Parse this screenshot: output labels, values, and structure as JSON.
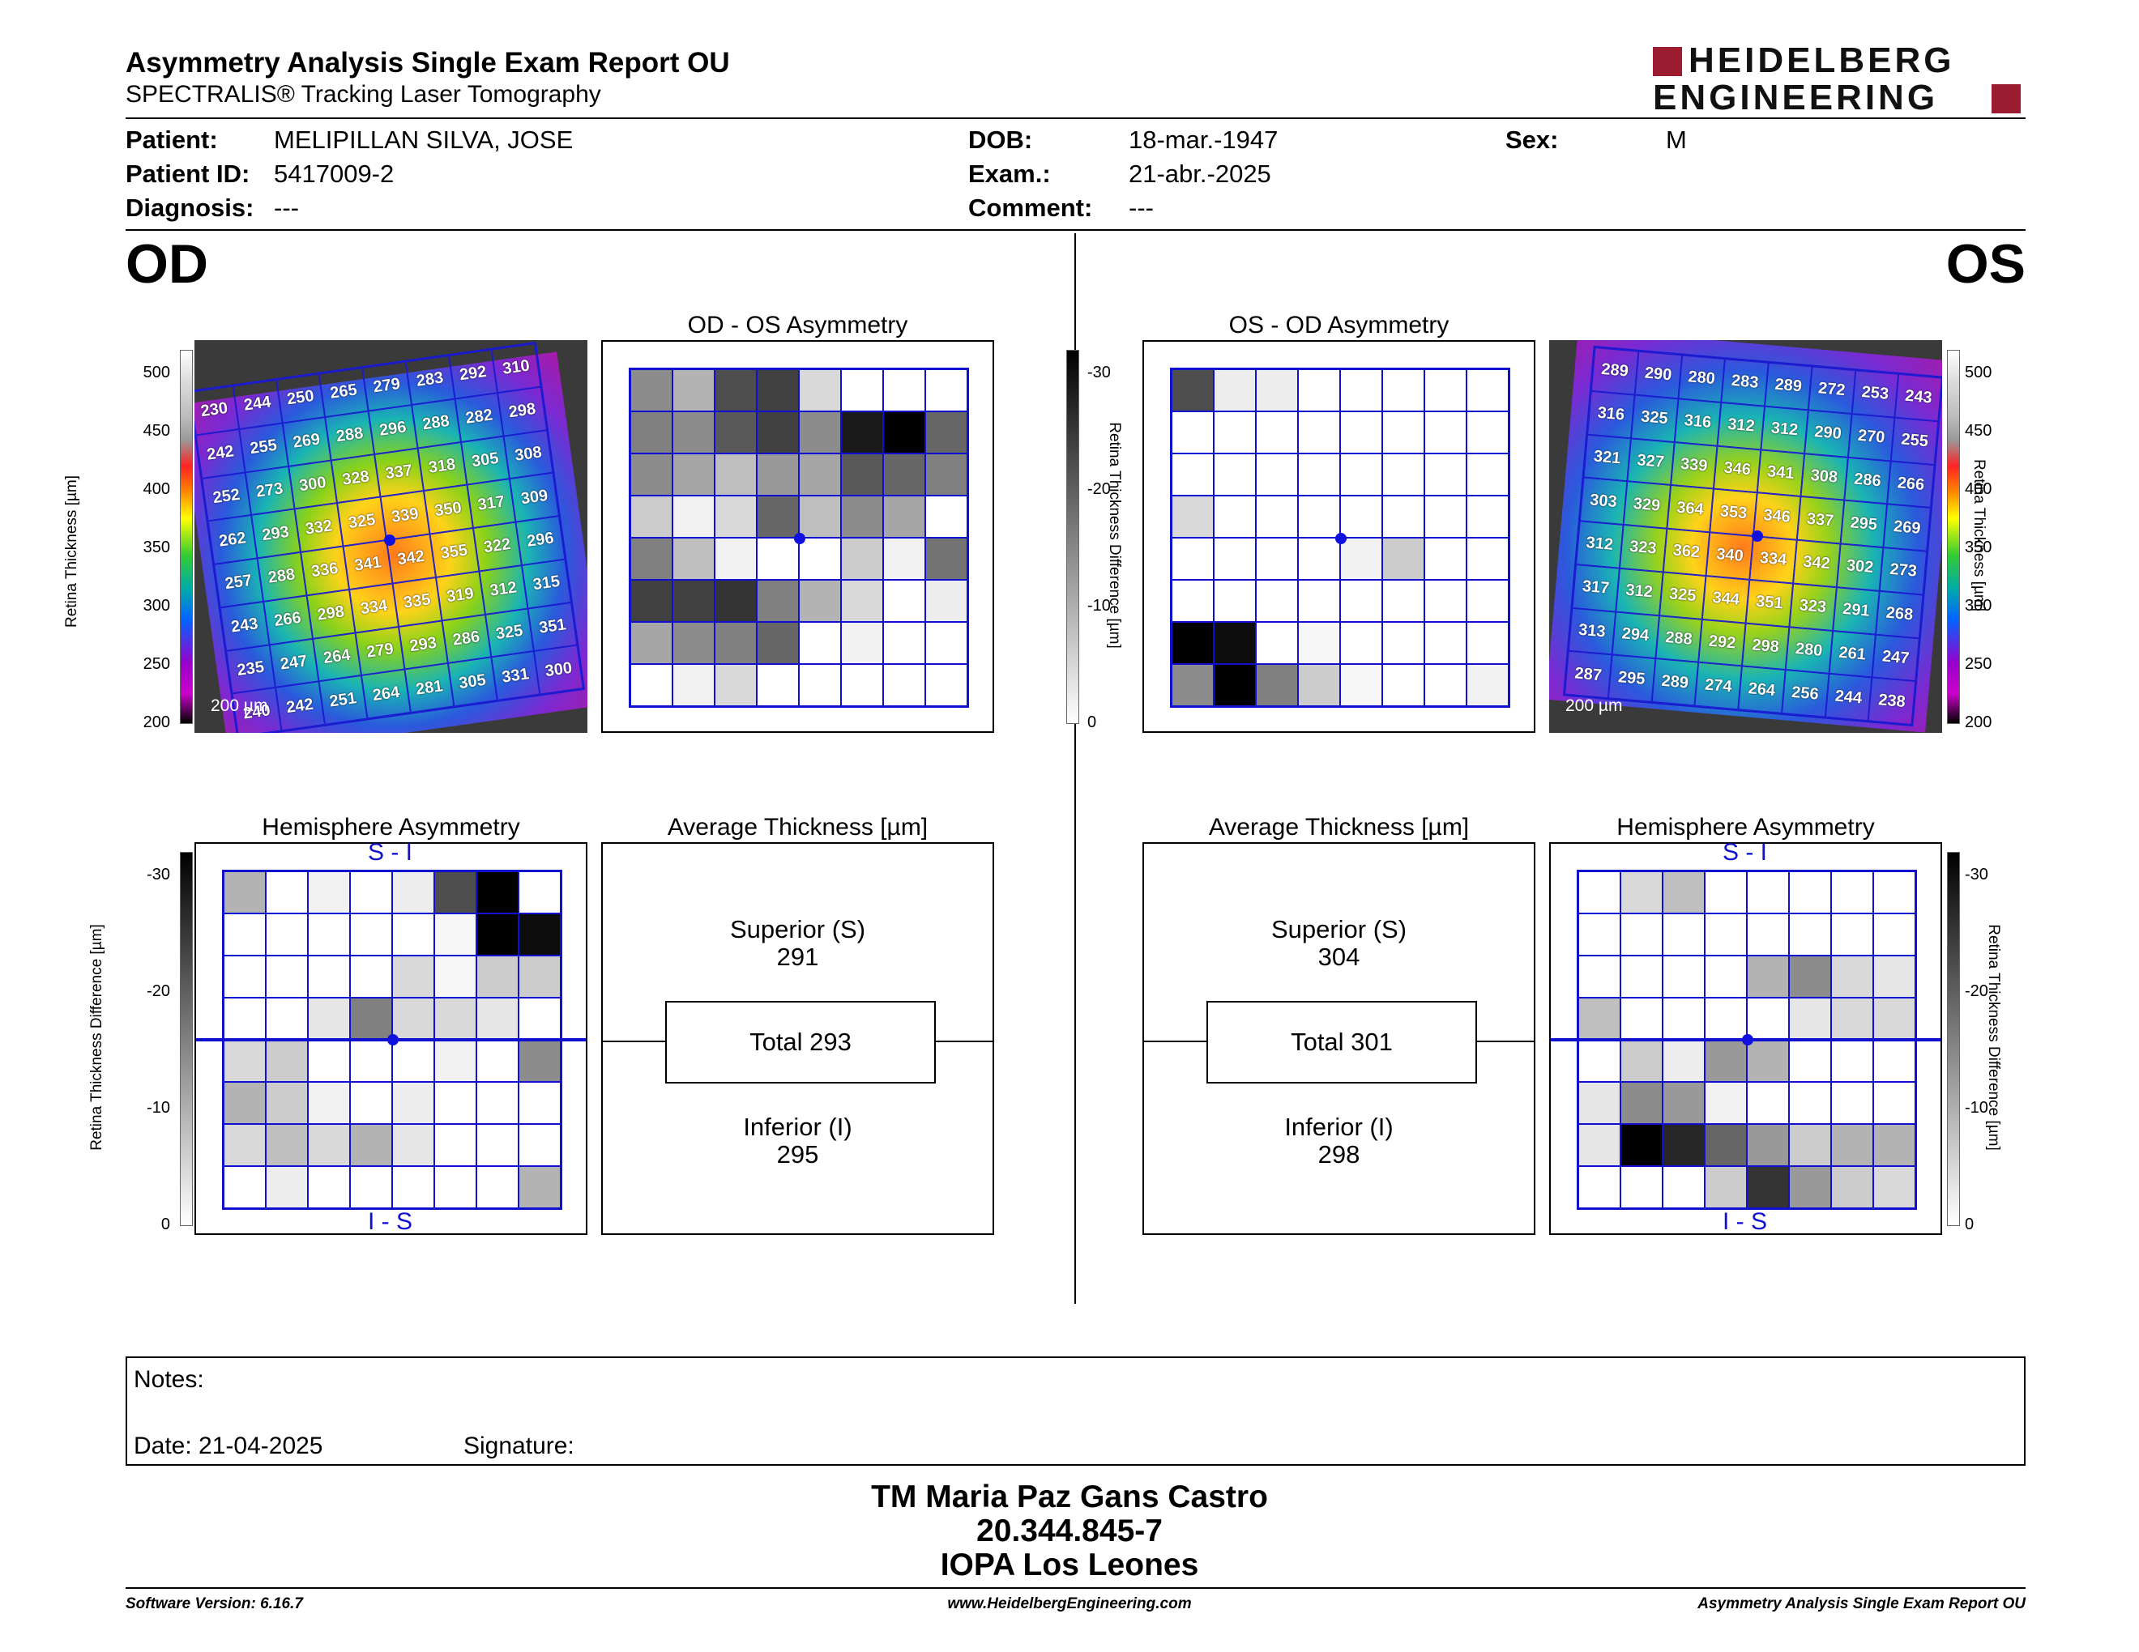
{
  "header": {
    "title": "Asymmetry Analysis Single Exam Report OU",
    "subtitle": "SPECTRALIS® Tracking Laser Tomography",
    "logo_line1": "HEIDELBERG",
    "logo_line2": "ENGINEERING"
  },
  "patient": {
    "patient_label": "Patient:",
    "patient_value": "MELIPILLAN SILVA, JOSE",
    "id_label": "Patient ID:",
    "id_value": "5417009-2",
    "diagnosis_label": "Diagnosis:",
    "diagnosis_value": "---",
    "dob_label": "DOB:",
    "dob_value": "18-mar.-1947",
    "exam_label": "Exam.:",
    "exam_value": "21-abr.-2025",
    "comment_label": "Comment:",
    "comment_value": "---",
    "sex_label": "Sex:",
    "sex_value": "M"
  },
  "eyes": {
    "od": "OD",
    "os": "OS"
  },
  "panels": {
    "od_asym_title": "OD - OS Asymmetry",
    "os_asym_title": "OS - OD Asymmetry",
    "hemi_title": "Hemisphere Asymmetry",
    "avg_title": "Average Thickness [µm]",
    "si": "S - I",
    "is": "I - S",
    "scale": "200 µm",
    "thickness_axis": "Retina  Thickness [µm]",
    "diff_axis": "Retina Thickness Difference [µm]"
  },
  "thickness_ticks": [
    "500",
    "450",
    "400",
    "350",
    "300",
    "250",
    "200"
  ],
  "diff_ticks": [
    "-30",
    "-20",
    "-10",
    "0"
  ],
  "od_values": [
    [
      230,
      244,
      250,
      265,
      279,
      283,
      292,
      310
    ],
    [
      242,
      255,
      269,
      288,
      296,
      288,
      282,
      298
    ],
    [
      252,
      273,
      300,
      328,
      337,
      318,
      305,
      308
    ],
    [
      262,
      293,
      332,
      325,
      339,
      350,
      317,
      309
    ],
    [
      257,
      288,
      336,
      341,
      342,
      355,
      322,
      296
    ],
    [
      243,
      266,
      298,
      334,
      335,
      319,
      312,
      315
    ],
    [
      235,
      247,
      264,
      279,
      293,
      286,
      325,
      351
    ],
    [
      240,
      242,
      251,
      264,
      281,
      305,
      331,
      300
    ]
  ],
  "os_values": [
    [
      289,
      290,
      280,
      283,
      289,
      272,
      253,
      243
    ],
    [
      316,
      325,
      316,
      312,
      312,
      290,
      270,
      255
    ],
    [
      321,
      327,
      339,
      346,
      341,
      308,
      286,
      266
    ],
    [
      303,
      329,
      364,
      353,
      346,
      337,
      295,
      269
    ],
    [
      312,
      323,
      362,
      340,
      334,
      342,
      302,
      273
    ],
    [
      317,
      312,
      325,
      344,
      351,
      323,
      291,
      268
    ],
    [
      313,
      294,
      288,
      292,
      298,
      280,
      261,
      247
    ],
    [
      287,
      295,
      289,
      274,
      264,
      256,
      244,
      238
    ]
  ],
  "od_asym_grid": [
    [
      0.45,
      0.3,
      0.7,
      0.75,
      0.15,
      0,
      0,
      0
    ],
    [
      0.5,
      0.45,
      0.65,
      0.75,
      0.45,
      0.9,
      1,
      0.6
    ],
    [
      0.45,
      0.35,
      0.25,
      0.4,
      0.35,
      0.65,
      0.6,
      0.5
    ],
    [
      0.2,
      0.05,
      0.15,
      0.6,
      0.25,
      0.45,
      0.35,
      0
    ],
    [
      0.5,
      0.25,
      0.05,
      0,
      0,
      0.2,
      0.05,
      0.55
    ],
    [
      0.75,
      0.75,
      0.8,
      0.5,
      0.3,
      0.15,
      0,
      0.07
    ],
    [
      0.35,
      0.45,
      0.5,
      0.6,
      0,
      0.05,
      0,
      0
    ],
    [
      0,
      0.05,
      0.15,
      0,
      0,
      0,
      0,
      0
    ]
  ],
  "os_asym_grid": [
    [
      0.7,
      0.07,
      0.07,
      0,
      0,
      0,
      0,
      0
    ],
    [
      0,
      0,
      0,
      0,
      0,
      0,
      0,
      0
    ],
    [
      0,
      0,
      0,
      0,
      0,
      0,
      0,
      0
    ],
    [
      0.15,
      0,
      0,
      0,
      0,
      0,
      0,
      0
    ],
    [
      0,
      0,
      0,
      0,
      0.05,
      0.2,
      0,
      0
    ],
    [
      0,
      0,
      0,
      0,
      0,
      0,
      0,
      0
    ],
    [
      1,
      0.95,
      0,
      0.03,
      0,
      0,
      0,
      0
    ],
    [
      0.45,
      1,
      0.5,
      0.2,
      0.03,
      0,
      0,
      0.05
    ]
  ],
  "od_hemi_grid": [
    [
      0.3,
      0,
      0.05,
      0,
      0.07,
      0.7,
      1,
      0
    ],
    [
      0,
      0,
      0,
      0,
      0,
      0.03,
      1,
      0.95
    ],
    [
      0,
      0,
      0,
      0,
      0.15,
      0.03,
      0.2,
      0.2
    ],
    [
      0,
      0,
      0.1,
      0.5,
      0.15,
      0.15,
      0.1,
      0
    ],
    [
      0.15,
      0.2,
      0,
      0,
      0,
      0.05,
      0,
      0.45
    ],
    [
      0.3,
      0.2,
      0.05,
      0,
      0.07,
      0,
      0,
      0
    ],
    [
      0.15,
      0.25,
      0.15,
      0.3,
      0.1,
      0,
      0,
      0
    ],
    [
      0,
      0.07,
      0,
      0,
      0,
      0,
      0,
      0.3
    ]
  ],
  "os_hemi_grid": [
    [
      0,
      0.15,
      0.25,
      0,
      0,
      0,
      0,
      0
    ],
    [
      0,
      0,
      0,
      0,
      0,
      0,
      0,
      0
    ],
    [
      0,
      0,
      0,
      0,
      0.3,
      0.45,
      0.15,
      0.1
    ],
    [
      0.25,
      0,
      0,
      0,
      0,
      0.1,
      0.15,
      0.15
    ],
    [
      0,
      0.2,
      0.07,
      0.4,
      0.3,
      0,
      0,
      0
    ],
    [
      0.1,
      0.45,
      0.4,
      0.05,
      0,
      0,
      0,
      0
    ],
    [
      0.1,
      1,
      0.85,
      0.6,
      0.4,
      0.2,
      0.3,
      0.3
    ],
    [
      0,
      0,
      0,
      0.2,
      0.8,
      0.4,
      0.2,
      0.15
    ]
  ],
  "averages": {
    "od": {
      "superior_label": "Superior (S)",
      "superior": "291",
      "total": "Total 293",
      "inferior_label": "Inferior (I)",
      "inferior": "295"
    },
    "os": {
      "superior_label": "Superior (S)",
      "superior": "304",
      "total": "Total 301",
      "inferior_label": "Inferior (I)",
      "inferior": "298"
    }
  },
  "notes": {
    "label": "Notes:",
    "date": "Date: 21-04-2025",
    "signature": "Signature:"
  },
  "signatory": {
    "name": "TM Maria Paz Gans Castro",
    "id": "20.344.845-7",
    "institution": "IOPA Los Leones"
  },
  "footer": {
    "software": "Software Version: 6.16.7",
    "url": "www.HeidelbergEngineering.com",
    "report": "Asymmetry Analysis Single Exam Report OU"
  },
  "colors": {
    "grid_blue": "#1010d0",
    "logo_red": "#9b1b30"
  }
}
